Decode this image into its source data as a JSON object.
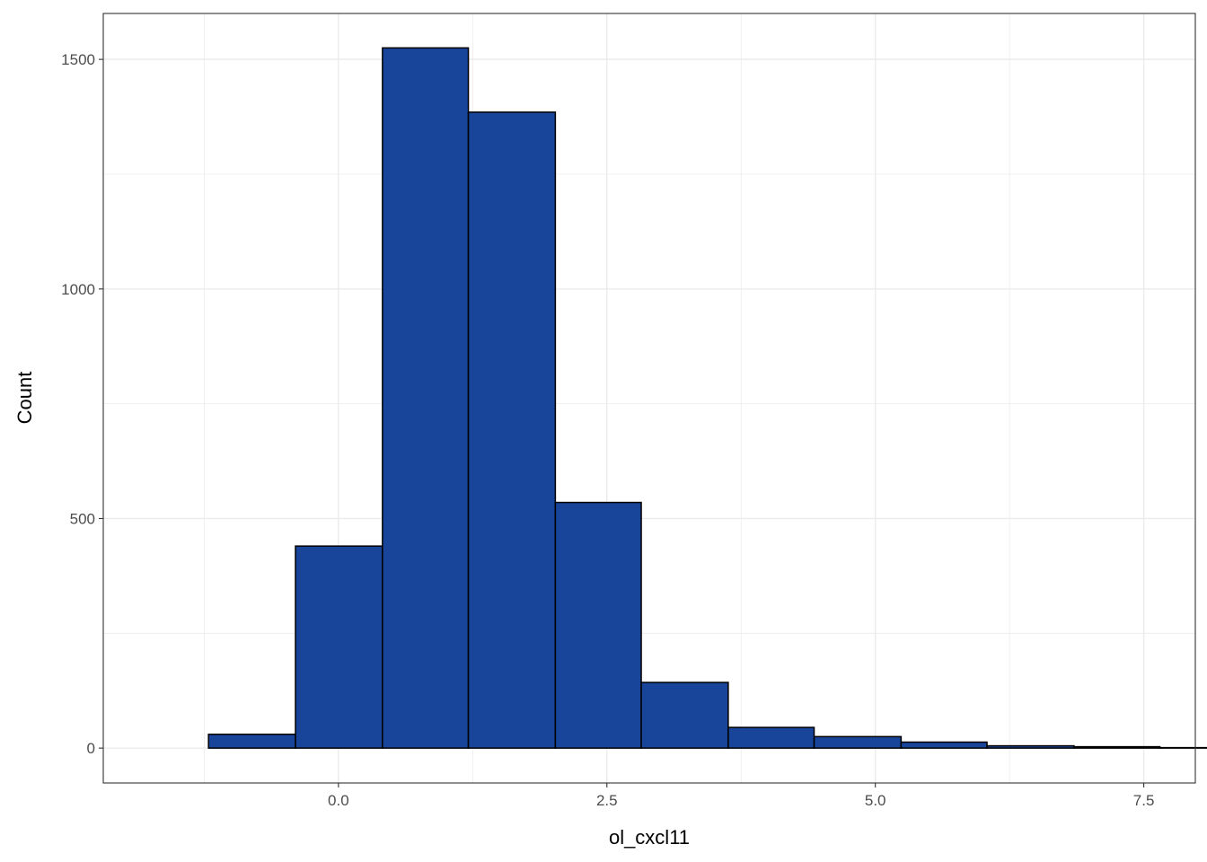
{
  "chart_data": {
    "type": "bar",
    "subtype": "histogram",
    "xlabel": "ol_cxcl11",
    "ylabel": "Count",
    "xlim": [
      -2.19,
      7.98
    ],
    "ylim": [
      -76,
      1600
    ],
    "x_ticks": [
      {
        "value": 0,
        "label": "0.0"
      },
      {
        "value": 2.5,
        "label": "2.5"
      },
      {
        "value": 5,
        "label": "5.0"
      },
      {
        "value": 7.5,
        "label": "7.5"
      }
    ],
    "y_ticks": [
      {
        "value": 0,
        "label": "0"
      },
      {
        "value": 500,
        "label": "500"
      },
      {
        "value": 1000,
        "label": "1000"
      },
      {
        "value": 1500,
        "label": "1500"
      }
    ],
    "bins": [
      {
        "x0": -1.21,
        "x1": -0.4,
        "count": 30
      },
      {
        "x0": -0.4,
        "x1": 0.41,
        "count": 440
      },
      {
        "x0": 0.41,
        "x1": 1.21,
        "count": 1525
      },
      {
        "x0": 1.21,
        "x1": 2.02,
        "count": 1385
      },
      {
        "x0": 2.02,
        "x1": 2.82,
        "count": 535
      },
      {
        "x0": 2.82,
        "x1": 3.63,
        "count": 143
      },
      {
        "x0": 3.63,
        "x1": 4.43,
        "count": 45
      },
      {
        "x0": 4.43,
        "x1": 5.24,
        "count": 25
      },
      {
        "x0": 5.24,
        "x1": 6.04,
        "count": 13
      },
      {
        "x0": 6.04,
        "x1": 6.85,
        "count": 5
      },
      {
        "x0": 6.85,
        "x1": 7.65,
        "count": 3
      },
      {
        "x0": 7.65,
        "x1": 8.46,
        "count": 1
      }
    ],
    "bar_fill": "#18449a",
    "bar_stroke": "#000000",
    "grid": true,
    "grid_color": "#ebebeb",
    "panel_border_color": "#333333"
  }
}
